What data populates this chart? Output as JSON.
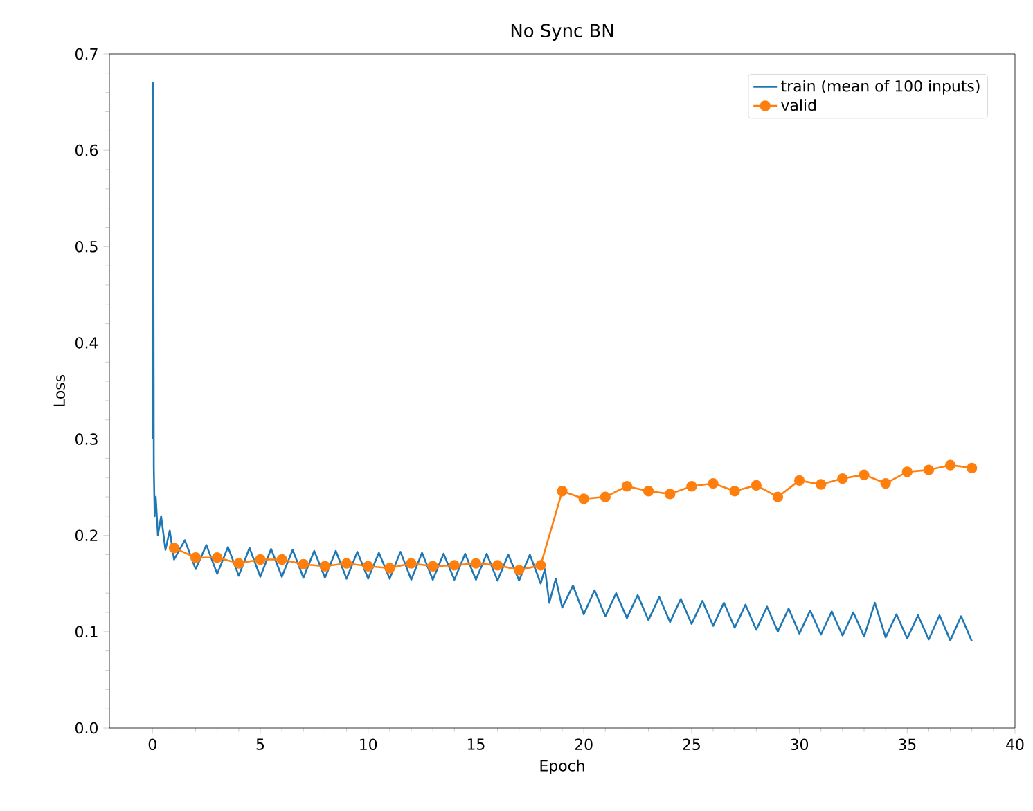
{
  "chart_data": {
    "type": "line",
    "title": "No Sync BN",
    "xlabel": "Epoch",
    "ylabel": "Loss",
    "xlim": [
      -2,
      40
    ],
    "ylim": [
      0,
      0.7
    ],
    "xticks": [
      0,
      5,
      10,
      15,
      20,
      25,
      30,
      35,
      40
    ],
    "yticks": [
      {
        "value": 0,
        "label": "0.0"
      },
      {
        "value": 0.1,
        "label": "0.1"
      },
      {
        "value": 0.2,
        "label": "0.2"
      },
      {
        "value": 0.3,
        "label": "0.3"
      },
      {
        "value": 0.4,
        "label": "0.4"
      },
      {
        "value": 0.5,
        "label": "0.5"
      },
      {
        "value": 0.6,
        "label": "0.6"
      },
      {
        "value": 0.7,
        "label": "0.7"
      }
    ],
    "legend": "top right",
    "grid": false,
    "series": [
      {
        "name": "train (mean of 100 inputs)",
        "color": "#1f77b4",
        "marker": "none",
        "x": [
          0,
          0.03,
          0.06,
          0.1,
          0.15,
          0.25,
          0.4,
          0.6,
          0.8,
          1,
          1.5,
          2,
          2.5,
          3,
          3.5,
          4,
          4.5,
          5,
          5.5,
          6,
          6.5,
          7,
          7.5,
          8,
          8.5,
          9,
          9.5,
          10,
          10.5,
          11,
          11.5,
          12,
          12.5,
          13,
          13.5,
          14,
          14.5,
          15,
          15.5,
          16,
          16.5,
          17,
          17.5,
          18,
          18.2,
          18.4,
          18.7,
          19,
          19.5,
          20,
          20.5,
          21,
          21.5,
          22,
          22.5,
          23,
          23.5,
          24,
          24.5,
          25,
          25.5,
          26,
          26.5,
          27,
          27.5,
          28,
          28.5,
          29,
          29.5,
          30,
          30.5,
          31,
          31.5,
          32,
          32.5,
          33,
          33.5,
          34,
          34.5,
          35,
          35.5,
          36,
          36.5,
          37,
          37.5,
          38
        ],
        "values": [
          0.3,
          0.67,
          0.27,
          0.22,
          0.24,
          0.2,
          0.22,
          0.185,
          0.205,
          0.175,
          0.195,
          0.165,
          0.19,
          0.16,
          0.188,
          0.158,
          0.187,
          0.157,
          0.186,
          0.157,
          0.185,
          0.156,
          0.184,
          0.156,
          0.184,
          0.155,
          0.183,
          0.155,
          0.182,
          0.155,
          0.183,
          0.154,
          0.182,
          0.154,
          0.181,
          0.154,
          0.181,
          0.154,
          0.181,
          0.153,
          0.18,
          0.153,
          0.18,
          0.15,
          0.165,
          0.13,
          0.155,
          0.125,
          0.148,
          0.118,
          0.143,
          0.116,
          0.14,
          0.114,
          0.138,
          0.112,
          0.136,
          0.11,
          0.134,
          0.108,
          0.132,
          0.106,
          0.13,
          0.104,
          0.128,
          0.102,
          0.126,
          0.1,
          0.124,
          0.098,
          0.122,
          0.097,
          0.121,
          0.096,
          0.12,
          0.095,
          0.13,
          0.094,
          0.118,
          0.093,
          0.117,
          0.092,
          0.117,
          0.091,
          0.116,
          0.09
        ]
      },
      {
        "name": "valid",
        "color": "#ff7f0e",
        "marker": "circle",
        "x": [
          1,
          2,
          3,
          4,
          5,
          6,
          7,
          8,
          9,
          10,
          11,
          12,
          13,
          14,
          15,
          16,
          17,
          18,
          19,
          20,
          21,
          22,
          23,
          24,
          25,
          26,
          27,
          28,
          29,
          30,
          31,
          32,
          33,
          34,
          35,
          36,
          37,
          38
        ],
        "values": [
          0.187,
          0.177,
          0.177,
          0.171,
          0.175,
          0.175,
          0.17,
          0.168,
          0.171,
          0.168,
          0.166,
          0.171,
          0.168,
          0.169,
          0.171,
          0.169,
          0.164,
          0.169,
          0.246,
          0.238,
          0.24,
          0.251,
          0.246,
          0.243,
          0.251,
          0.254,
          0.246,
          0.252,
          0.24,
          0.257,
          0.253,
          0.259,
          0.263,
          0.254,
          0.266,
          0.268,
          0.273,
          0.27
        ]
      }
    ]
  }
}
